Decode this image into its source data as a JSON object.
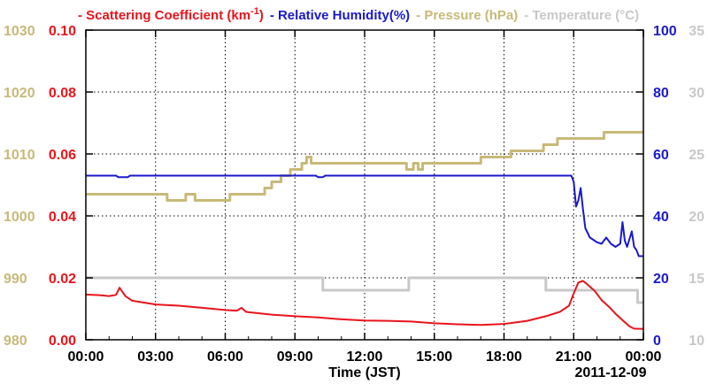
{
  "chart_data": {
    "type": "line",
    "legend": [
      {
        "key": "scattering",
        "dash": "-",
        "label": "Scattering Coefficient (km",
        "sup": "-1",
        "close": ")",
        "color": "#e8141c"
      },
      {
        "key": "humidity",
        "dash": "-",
        "label": "Relative Humidity(%)",
        "sup": "",
        "close": "",
        "color": "#1a1acc"
      },
      {
        "key": "pressure",
        "dash": "-",
        "label": "Pressure (hPa)",
        "sup": "",
        "close": "",
        "color": "#c8b978"
      },
      {
        "key": "temperature",
        "dash": "-",
        "label": "Temperature (°C)",
        "sup": "",
        "close": "",
        "color": "#c8c8c8"
      }
    ],
    "xlabel": "Time (JST)",
    "date_label": "2011-12-09",
    "x_tick_labels": [
      "00:00",
      "03:00",
      "06:00",
      "09:00",
      "12:00",
      "15:00",
      "18:00",
      "21:00",
      "00:00"
    ],
    "xlim_hours": [
      0,
      24
    ],
    "grid": true,
    "axes": {
      "pressure": {
        "range": [
          980,
          1030
        ],
        "ticks": [
          "980",
          "990",
          "1000",
          "1010",
          "1020",
          "1030"
        ],
        "color": "#c8b978",
        "side": "left-outer"
      },
      "scattering": {
        "range": [
          0.0,
          0.1
        ],
        "ticks": [
          "0.00",
          "0.02",
          "0.04",
          "0.06",
          "0.08",
          "0.10"
        ],
        "color": "#e8141c",
        "side": "left-inner"
      },
      "humidity": {
        "range": [
          0,
          100
        ],
        "ticks": [
          "0",
          "20",
          "40",
          "60",
          "80",
          "100"
        ],
        "color": "#1a1acc",
        "side": "right-inner"
      },
      "temperature": {
        "range": [
          10,
          35
        ],
        "ticks": [
          "10",
          "15",
          "20",
          "25",
          "30",
          "35"
        ],
        "color": "#c8c8c8",
        "side": "right-outer"
      }
    },
    "series": [
      {
        "key": "pressure",
        "color": "#c8b978",
        "points": [
          [
            0,
            1003.5
          ],
          [
            3.5,
            1003.5
          ],
          [
            3.5,
            1002.5
          ],
          [
            4.3,
            1002.5
          ],
          [
            4.3,
            1003.5
          ],
          [
            4.7,
            1003.5
          ],
          [
            4.7,
            1002.5
          ],
          [
            6.2,
            1002.5
          ],
          [
            6.2,
            1003.5
          ],
          [
            7.7,
            1003.5
          ],
          [
            7.7,
            1004.5
          ],
          [
            8.0,
            1004.5
          ],
          [
            8.0,
            1005.5
          ],
          [
            8.4,
            1005.5
          ],
          [
            8.4,
            1006.5
          ],
          [
            8.8,
            1006.5
          ],
          [
            8.8,
            1007.5
          ],
          [
            9.3,
            1007.5
          ],
          [
            9.3,
            1008.5
          ],
          [
            9.5,
            1008.5
          ],
          [
            9.5,
            1009.5
          ],
          [
            9.7,
            1009.5
          ],
          [
            9.7,
            1008.5
          ],
          [
            13.8,
            1008.5
          ],
          [
            13.8,
            1007.5
          ],
          [
            14.1,
            1007.5
          ],
          [
            14.1,
            1008.5
          ],
          [
            14.3,
            1008.5
          ],
          [
            14.3,
            1007.5
          ],
          [
            14.5,
            1007.5
          ],
          [
            14.5,
            1008.5
          ],
          [
            17.0,
            1008.5
          ],
          [
            17.0,
            1009.5
          ],
          [
            18.3,
            1009.5
          ],
          [
            18.3,
            1010.5
          ],
          [
            19.7,
            1010.5
          ],
          [
            19.7,
            1011.5
          ],
          [
            20.3,
            1011.5
          ],
          [
            20.3,
            1012.5
          ],
          [
            22.3,
            1012.5
          ],
          [
            22.3,
            1013.5
          ],
          [
            24,
            1013.5
          ]
        ]
      },
      {
        "key": "temperature",
        "color": "#c8c8c8",
        "points": [
          [
            0,
            15
          ],
          [
            10.2,
            15
          ],
          [
            10.2,
            14
          ],
          [
            13.9,
            14
          ],
          [
            13.9,
            15
          ],
          [
            19.8,
            15
          ],
          [
            19.8,
            14
          ],
          [
            23.75,
            14
          ],
          [
            23.75,
            13
          ],
          [
            24,
            13
          ]
        ]
      },
      {
        "key": "humidity",
        "color": "#1a1acc",
        "points": [
          [
            0,
            53
          ],
          [
            1.3,
            53
          ],
          [
            1.4,
            52.5
          ],
          [
            1.8,
            52.5
          ],
          [
            1.9,
            53
          ],
          [
            9.9,
            53
          ],
          [
            10.0,
            52.5
          ],
          [
            10.2,
            52.5
          ],
          [
            10.3,
            53
          ],
          [
            20.9,
            53
          ],
          [
            21.0,
            51
          ],
          [
            21.1,
            43
          ],
          [
            21.2,
            45
          ],
          [
            21.3,
            49
          ],
          [
            21.4,
            42
          ],
          [
            21.5,
            36
          ],
          [
            21.7,
            33
          ],
          [
            21.9,
            32
          ],
          [
            22.0,
            31.5
          ],
          [
            22.2,
            31
          ],
          [
            22.4,
            33
          ],
          [
            22.6,
            31
          ],
          [
            22.8,
            30
          ],
          [
            23.0,
            31
          ],
          [
            23.1,
            38
          ],
          [
            23.2,
            32
          ],
          [
            23.3,
            30
          ],
          [
            23.5,
            35
          ],
          [
            23.6,
            30
          ],
          [
            23.7,
            29
          ],
          [
            23.8,
            27
          ],
          [
            24,
            27
          ]
        ]
      },
      {
        "key": "scattering",
        "color": "#e8141c",
        "points": [
          [
            0,
            0.0146
          ],
          [
            0.6,
            0.0144
          ],
          [
            1.0,
            0.0141
          ],
          [
            1.3,
            0.0145
          ],
          [
            1.45,
            0.0168
          ],
          [
            1.7,
            0.0141
          ],
          [
            2.0,
            0.0126
          ],
          [
            3.0,
            0.0114
          ],
          [
            4.0,
            0.011
          ],
          [
            5.0,
            0.0103
          ],
          [
            6.0,
            0.0096
          ],
          [
            6.5,
            0.0094
          ],
          [
            6.7,
            0.0103
          ],
          [
            6.9,
            0.009
          ],
          [
            8.0,
            0.0081
          ],
          [
            9.0,
            0.0076
          ],
          [
            10.0,
            0.0072
          ],
          [
            11.0,
            0.0066
          ],
          [
            12.0,
            0.0062
          ],
          [
            13.0,
            0.0061
          ],
          [
            14.0,
            0.0059
          ],
          [
            15.0,
            0.0053
          ],
          [
            16.0,
            0.005
          ],
          [
            17.0,
            0.0048
          ],
          [
            18.0,
            0.0051
          ],
          [
            19.0,
            0.0061
          ],
          [
            19.8,
            0.0076
          ],
          [
            20.4,
            0.009
          ],
          [
            20.8,
            0.011
          ],
          [
            21.0,
            0.015
          ],
          [
            21.2,
            0.0185
          ],
          [
            21.4,
            0.019
          ],
          [
            21.6,
            0.0178
          ],
          [
            21.9,
            0.0158
          ],
          [
            22.2,
            0.0128
          ],
          [
            22.5,
            0.0108
          ],
          [
            22.8,
            0.0084
          ],
          [
            23.1,
            0.0063
          ],
          [
            23.4,
            0.0043
          ],
          [
            23.6,
            0.0036
          ],
          [
            24,
            0.0035
          ]
        ]
      }
    ]
  }
}
